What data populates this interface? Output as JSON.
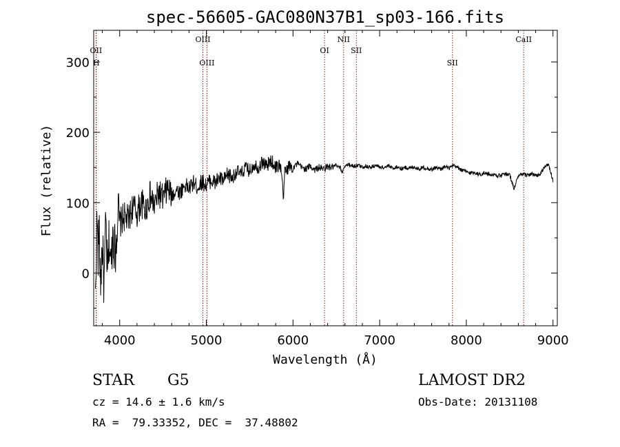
{
  "chart_data": {
    "type": "line",
    "title": "spec-56605-GAC080N37B1_sp03-166.fits",
    "xlabel": "Wavelength (Å)",
    "ylabel": "Flux (relative)",
    "xlim": [
      3700,
      9050
    ],
    "ylim": [
      -75,
      345
    ],
    "x_ticks": [
      4000,
      5000,
      6000,
      7000,
      8000,
      9000
    ],
    "y_ticks": [
      0,
      100,
      200,
      300
    ],
    "grid": false,
    "line_color": "#000000",
    "marker_color": "#8b1a1a",
    "series": [
      {
        "x": [
          3720,
          3730,
          3740,
          3750,
          3760,
          3780,
          3800,
          3820,
          3840,
          3860,
          3880,
          3900,
          3920,
          3950,
          3980,
          4000,
          4050,
          4100,
          4150,
          4200,
          4250,
          4300,
          4350,
          4400,
          4450,
          4500,
          4550,
          4600,
          4650,
          4700,
          4750,
          4800,
          4850,
          4900,
          4950,
          5000,
          5050,
          5100,
          5150,
          5200,
          5250,
          5300,
          5350,
          5400,
          5450,
          5500,
          5550,
          5600,
          5650,
          5700,
          5750,
          5800,
          5850,
          5880,
          5890,
          5900,
          5950,
          6000,
          6050,
          6100,
          6150,
          6200,
          6250,
          6300,
          6350,
          6400,
          6450,
          6500,
          6550,
          6560,
          6600,
          6650,
          6700,
          6750,
          6800,
          6850,
          6900,
          6950,
          7000,
          7050,
          7100,
          7150,
          7200,
          7250,
          7300,
          7350,
          7400,
          7450,
          7500,
          7550,
          7600,
          7650,
          7700,
          7750,
          7800,
          7850,
          7900,
          7950,
          8000,
          8050,
          8100,
          8150,
          8200,
          8250,
          8300,
          8350,
          8400,
          8450,
          8500,
          8550,
          8600,
          8650,
          8700,
          8750,
          8800,
          8850,
          8900,
          8950,
          8980,
          9000
        ],
        "y": [
          -40,
          30,
          80,
          20,
          60,
          -10,
          40,
          -20,
          70,
          -5,
          50,
          10,
          60,
          30,
          90,
          70,
          80,
          75,
          95,
          85,
          100,
          90,
          110,
          95,
          115,
          105,
          120,
          110,
          118,
          115,
          125,
          120,
          128,
          122,
          130,
          125,
          132,
          128,
          135,
          130,
          140,
          135,
          145,
          140,
          150,
          145,
          155,
          150,
          158,
          152,
          160,
          150,
          155,
          130,
          90,
          140,
          152,
          150,
          155,
          150,
          148,
          152,
          147,
          150,
          148,
          151,
          150,
          152,
          149,
          142,
          153,
          154,
          152,
          153,
          151,
          152,
          150,
          153,
          151,
          150,
          152,
          149,
          151,
          148,
          150,
          149,
          151,
          148,
          150,
          149,
          147,
          150,
          148,
          151,
          149,
          152,
          150,
          146,
          144,
          142,
          143,
          140,
          142,
          141,
          140,
          139,
          138,
          141,
          140,
          120,
          138,
          140,
          139,
          141,
          138,
          140,
          150,
          155,
          140,
          130
        ]
      }
    ],
    "line_markers": [
      {
        "label": "OII",
        "x": 3727,
        "row": 2,
        "side": "left"
      },
      {
        "label": "H",
        "x": 3730,
        "row": 3,
        "side": "left"
      },
      {
        "label": "OIII",
        "x": 4960,
        "row": 1,
        "side": "left"
      },
      {
        "label": "OIII",
        "x": 5007,
        "row": 3,
        "side": "left"
      },
      {
        "label": "OI",
        "x": 6364,
        "row": 2,
        "side": "left"
      },
      {
        "label": "NII",
        "x": 6584,
        "row": 1,
        "side": "left"
      },
      {
        "label": "SII",
        "x": 6731,
        "row": 2,
        "side": "left"
      },
      {
        "label": "SII",
        "x": 7840,
        "row": 3,
        "side": "left"
      },
      {
        "label": "CaII",
        "x": 8662,
        "row": 1,
        "side": "left"
      }
    ]
  },
  "info": {
    "object_class": "STAR",
    "subclass": "G5",
    "survey": "LAMOST DR2",
    "redshift_text": "cz = 14.6 ± 1.6 km/s",
    "obs_date_text": "Obs-Date: 20131108",
    "coords_text": "RA =  79.33352, DEC =  37.48802"
  }
}
